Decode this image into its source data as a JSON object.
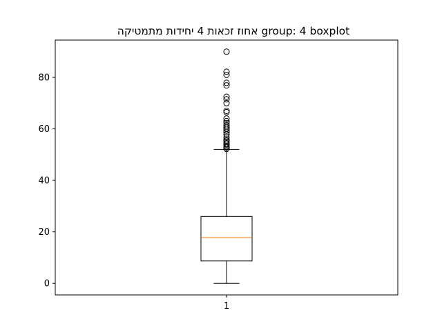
{
  "chart_data": {
    "type": "boxplot",
    "title": "אחוז זכאות 4 יחידות מתמטיקה  group: 4 boxplot",
    "xlabel": "",
    "ylabel": "",
    "categories": [
      "1"
    ],
    "ylim": [
      -4.5,
      94.5
    ],
    "yticks": [
      0,
      20,
      40,
      60,
      80
    ],
    "grid": false,
    "boxes": [
      {
        "category": "1",
        "whisker_low": 0,
        "q1": 8.7,
        "median": 17.8,
        "q3": 26.0,
        "whisker_high": 52.0,
        "outliers": [
          52.2,
          52.8,
          53.3,
          53.9,
          54.4,
          54.9,
          55.4,
          55.9,
          56.7,
          57.8,
          58.6,
          59.3,
          60.0,
          60.7,
          61.4,
          62.2,
          63.0,
          64.0,
          66.5,
          67.0,
          70.0,
          71.5,
          72.5,
          76.9,
          77.9,
          81.0,
          82.2,
          90.0
        ]
      }
    ],
    "colors": {
      "box": "#000000",
      "median": "#ff7f0e",
      "outlier": "#000000"
    }
  }
}
